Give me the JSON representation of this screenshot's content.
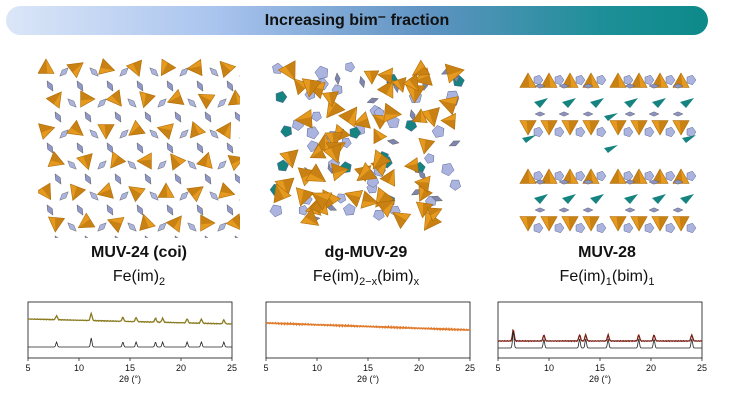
{
  "banner": {
    "title": "Increasing bim⁻ fraction"
  },
  "panels": [
    {
      "name": "MUV-24 (coi)",
      "formula_base": "Fe(im)",
      "formula_sub": "2",
      "formula_tail": "",
      "formula_sub2": "",
      "xrd": {
        "xmin": 5,
        "xmax": 25,
        "ticks": [
          "5",
          "10",
          "15",
          "20",
          "25"
        ],
        "xlabel": "2θ (°)",
        "peaks_exp": [
          7.8,
          11.2,
          14.3,
          15.6,
          17.5,
          18.2,
          20.6,
          22.0,
          24.2
        ],
        "color": "#8a7a20"
      }
    },
    {
      "name": "dg-MUV-29",
      "formula_base": "Fe(im)",
      "formula_sub": "2−x",
      "formula_tail": "(bim)",
      "formula_sub2": "x",
      "xrd": {
        "xmin": 5,
        "xmax": 25,
        "ticks": [
          "5",
          "10",
          "15",
          "20",
          "25"
        ],
        "xlabel": "2θ (°)",
        "color": "#e07a2a"
      }
    },
    {
      "name": "MUV-28",
      "formula_base": "Fe(im)",
      "formula_sub": "1",
      "formula_tail": "(bim)",
      "formula_sub2": "1",
      "xrd": {
        "xmin": 5,
        "xmax": 25,
        "ticks": [
          "5",
          "10",
          "15",
          "20",
          "25"
        ],
        "xlabel": "2θ (°)",
        "peaks_exp": [
          6.5,
          9.5,
          13.0,
          13.6,
          15.8,
          18.8,
          20.3,
          24.0
        ],
        "color": "#7a1e14"
      }
    }
  ],
  "colors": {
    "fe_tetra": "#e59a1f",
    "fe_tetra_dark": "#b06d08",
    "im": "#aab4de",
    "bim": "#15837f"
  }
}
